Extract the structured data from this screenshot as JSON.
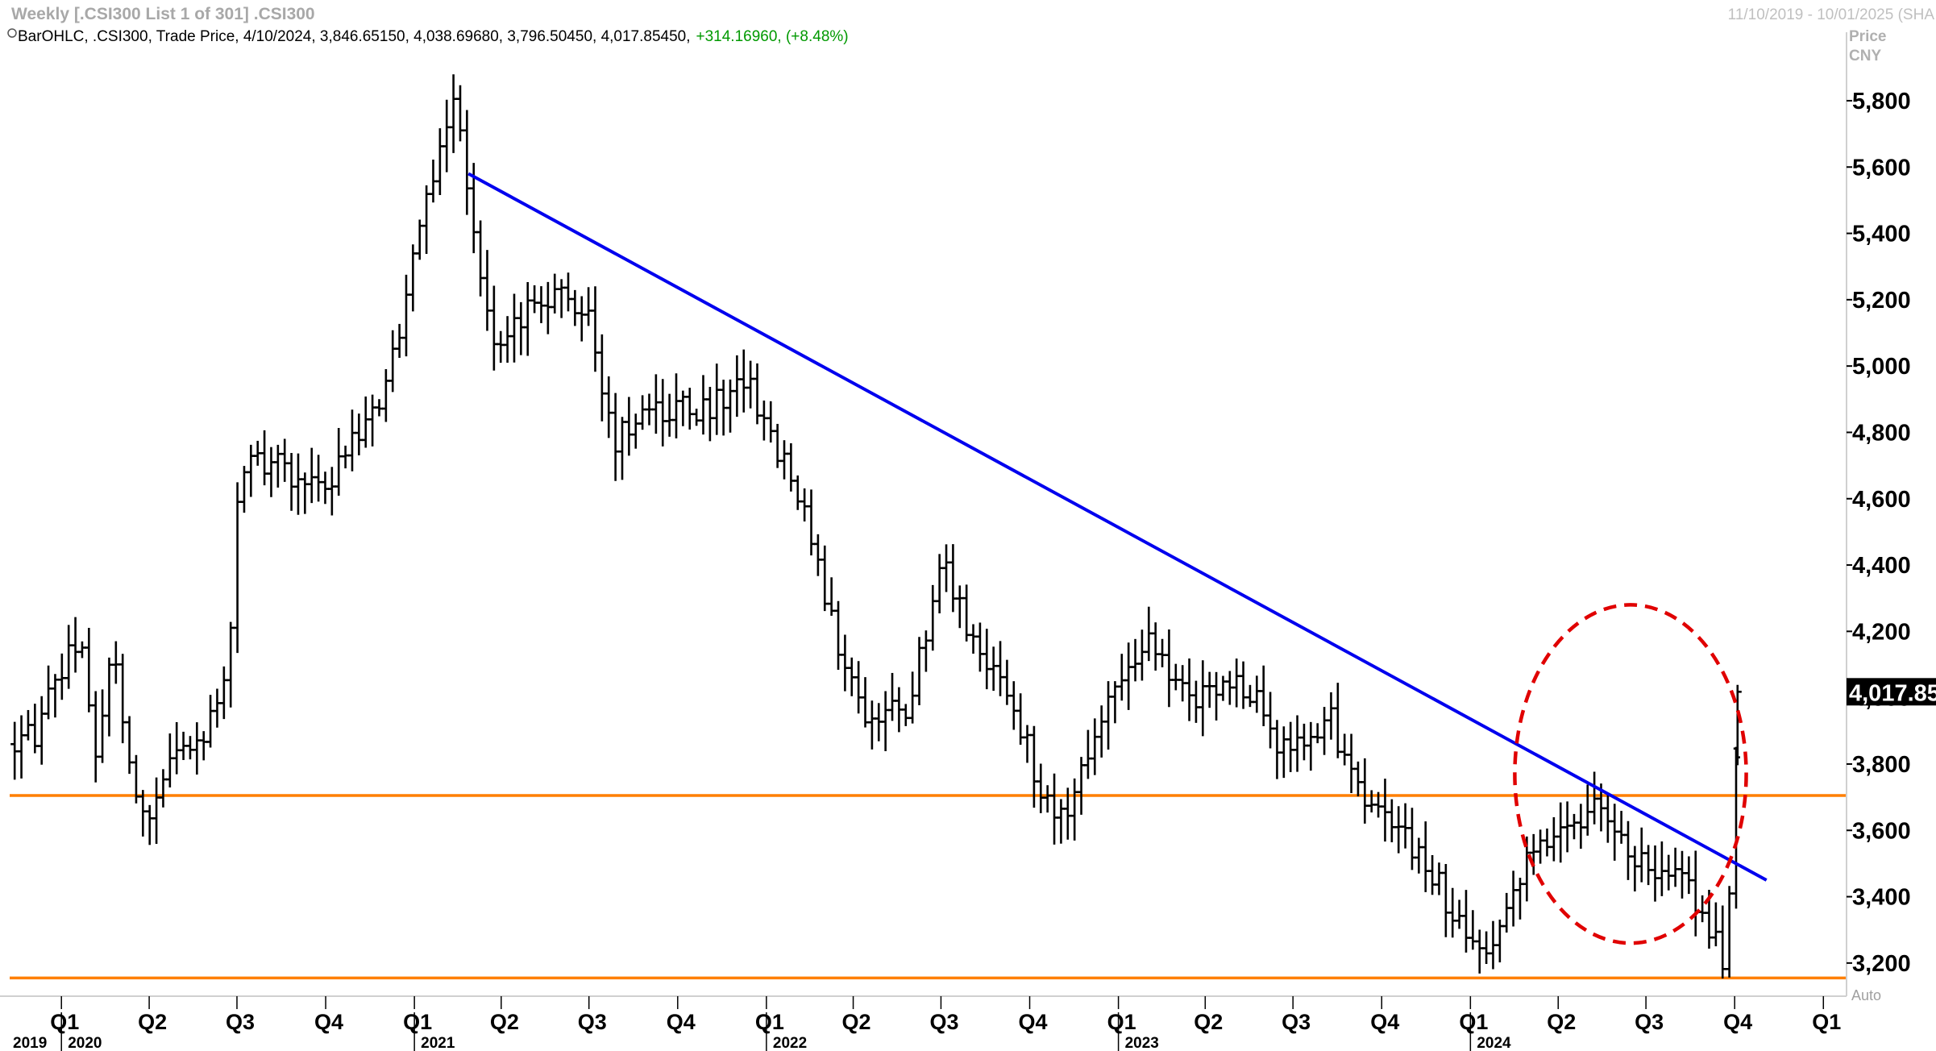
{
  "header": {
    "title": "Weekly [.CSI300 List 1 of 301] .CSI300",
    "date_range": "11/10/2019 - 10/01/2025 (SHA"
  },
  "legend": {
    "text": "BarOHLC, .CSI300, Trade Price, 4/10/2024, 3,846.65150, 4,038.69680, 3,796.50450, 4,017.85450,",
    "change": "+314.16960, (+8.48%)"
  },
  "axis": {
    "unit_line1": "Price",
    "unit_line2": "CNY",
    "auto_label": "Auto"
  },
  "chart_data": {
    "type": "ohlc",
    "instrument": ".CSI300",
    "interval": "Weekly",
    "currency": "CNY",
    "ylim": [
      3100,
      5970
    ],
    "y_ticks": [
      3200,
      3400,
      3600,
      3800,
      4000,
      4200,
      4400,
      4600,
      4800,
      5000,
      5200,
      5400,
      5600,
      5800
    ],
    "y_tick_labels": [
      "3,200",
      "3,400",
      "3,600",
      "3,800",
      "4,000",
      "4,200",
      "4,400",
      "4,600",
      "4,800",
      "5,000",
      "5,200",
      "5,400",
      "5,600",
      "5,800"
    ],
    "x_quarters": [
      {
        "label": "Q1",
        "date": "2020-01-01"
      },
      {
        "label": "Q2",
        "date": "2020-04-01"
      },
      {
        "label": "Q3",
        "date": "2020-07-01"
      },
      {
        "label": "Q4",
        "date": "2020-10-01"
      },
      {
        "label": "Q1",
        "date": "2021-01-01"
      },
      {
        "label": "Q2",
        "date": "2021-04-01"
      },
      {
        "label": "Q3",
        "date": "2021-07-01"
      },
      {
        "label": "Q4",
        "date": "2021-10-01"
      },
      {
        "label": "Q1",
        "date": "2022-01-01"
      },
      {
        "label": "Q2",
        "date": "2022-04-01"
      },
      {
        "label": "Q3",
        "date": "2022-07-01"
      },
      {
        "label": "Q4",
        "date": "2022-10-01"
      },
      {
        "label": "Q1",
        "date": "2023-01-01"
      },
      {
        "label": "Q2",
        "date": "2023-04-01"
      },
      {
        "label": "Q3",
        "date": "2023-07-01"
      },
      {
        "label": "Q4",
        "date": "2023-10-01"
      },
      {
        "label": "Q1",
        "date": "2024-01-01"
      },
      {
        "label": "Q2",
        "date": "2024-04-01"
      },
      {
        "label": "Q3",
        "date": "2024-07-01"
      },
      {
        "label": "Q4",
        "date": "2024-10-01"
      },
      {
        "label": "Q1",
        "date": "2025-01-01"
      }
    ],
    "x_years": [
      {
        "label": "2019",
        "date": "2019-11-10"
      },
      {
        "label": "2020",
        "date": "2020-01-01"
      },
      {
        "label": "2021",
        "date": "2021-01-01"
      },
      {
        "label": "2022",
        "date": "2022-01-01"
      },
      {
        "label": "2023",
        "date": "2023-01-01"
      },
      {
        "label": "2024",
        "date": "2024-01-01"
      }
    ],
    "x_range": [
      "2019-11-10",
      "2025-01-25"
    ],
    "anchors": [
      {
        "date": "2019-11-10",
        "price": 3860
      },
      {
        "date": "2019-12-08",
        "price": 3900
      },
      {
        "date": "2020-01-12",
        "price": 4180
      },
      {
        "date": "2020-01-26",
        "price": 4150
      },
      {
        "date": "2020-02-02",
        "price": 3720
      },
      {
        "date": "2020-02-23",
        "price": 4150
      },
      {
        "date": "2020-03-22",
        "price": 3620
      },
      {
        "date": "2020-04-19",
        "price": 3780
      },
      {
        "date": "2020-05-24",
        "price": 3880
      },
      {
        "date": "2020-06-21",
        "price": 4100
      },
      {
        "date": "2020-07-05",
        "price": 4700
      },
      {
        "date": "2020-07-26",
        "price": 4720
      },
      {
        "date": "2020-09-27",
        "price": 4620
      },
      {
        "date": "2020-11-22",
        "price": 4880
      },
      {
        "date": "2020-12-20",
        "price": 5150
      },
      {
        "date": "2021-01-10",
        "price": 5500
      },
      {
        "date": "2021-02-14",
        "price": 5800
      },
      {
        "date": "2021-03-14",
        "price": 5150
      },
      {
        "date": "2021-04-04",
        "price": 5060
      },
      {
        "date": "2021-05-02",
        "price": 5180
      },
      {
        "date": "2021-06-06",
        "price": 5250
      },
      {
        "date": "2021-07-04",
        "price": 5120
      },
      {
        "date": "2021-07-25",
        "price": 4780
      },
      {
        "date": "2021-09-19",
        "price": 4870
      },
      {
        "date": "2021-11-07",
        "price": 4880
      },
      {
        "date": "2021-12-12",
        "price": 4960
      },
      {
        "date": "2022-01-09",
        "price": 4780
      },
      {
        "date": "2022-02-13",
        "price": 4560
      },
      {
        "date": "2022-03-06",
        "price": 4250
      },
      {
        "date": "2022-04-17",
        "price": 3920
      },
      {
        "date": "2022-05-29",
        "price": 3980
      },
      {
        "date": "2022-07-03",
        "price": 4430
      },
      {
        "date": "2022-07-31",
        "price": 4200
      },
      {
        "date": "2022-09-04",
        "price": 4050
      },
      {
        "date": "2022-10-09",
        "price": 3760
      },
      {
        "date": "2022-10-30",
        "price": 3600
      },
      {
        "date": "2022-12-04",
        "price": 3860
      },
      {
        "date": "2023-01-29",
        "price": 4180
      },
      {
        "date": "2023-03-12",
        "price": 4000
      },
      {
        "date": "2023-05-14",
        "price": 4040
      },
      {
        "date": "2023-06-18",
        "price": 3830
      },
      {
        "date": "2023-08-06",
        "price": 3950
      },
      {
        "date": "2023-09-10",
        "price": 3720
      },
      {
        "date": "2023-10-22",
        "price": 3600
      },
      {
        "date": "2023-12-10",
        "price": 3380
      },
      {
        "date": "2024-01-21",
        "price": 3200
      },
      {
        "date": "2024-02-04",
        "price": 3300
      },
      {
        "date": "2024-03-03",
        "price": 3540
      },
      {
        "date": "2024-04-07",
        "price": 3580
      },
      {
        "date": "2024-05-19",
        "price": 3680
      },
      {
        "date": "2024-06-30",
        "price": 3480
      },
      {
        "date": "2024-08-04",
        "price": 3460
      },
      {
        "date": "2024-09-08",
        "price": 3300
      },
      {
        "date": "2024-09-22",
        "price": 3200
      },
      {
        "date": "2024-09-29",
        "price": 3700
      },
      {
        "date": "2024-10-06",
        "price": 4017.85
      }
    ],
    "last_bar": {
      "date": "2024-10-04",
      "open": 3846.6515,
      "high": 4038.6968,
      "low": 3796.5045,
      "close": 4017.8545
    },
    "last_price_label": "4,017.85",
    "trendline": {
      "from": {
        "date": "2021-02-26",
        "price": 5580
      },
      "to": {
        "date": "2024-11-03",
        "price": 3450
      },
      "color": "#0000ee"
    },
    "support_lines": [
      {
        "price": 3705,
        "color": "#ff7f00"
      },
      {
        "price": 3155,
        "color": "#ff7f00"
      }
    ],
    "highlight_circle": {
      "center_date": "2024-06-15",
      "center_price": 3770,
      "radius_days": 120,
      "radius_price": 510,
      "color": "#e00000"
    },
    "colors": {
      "bars": "#000000",
      "trendline": "#0000ee",
      "support": "#ff7f00",
      "highlight": "#e00000"
    }
  }
}
